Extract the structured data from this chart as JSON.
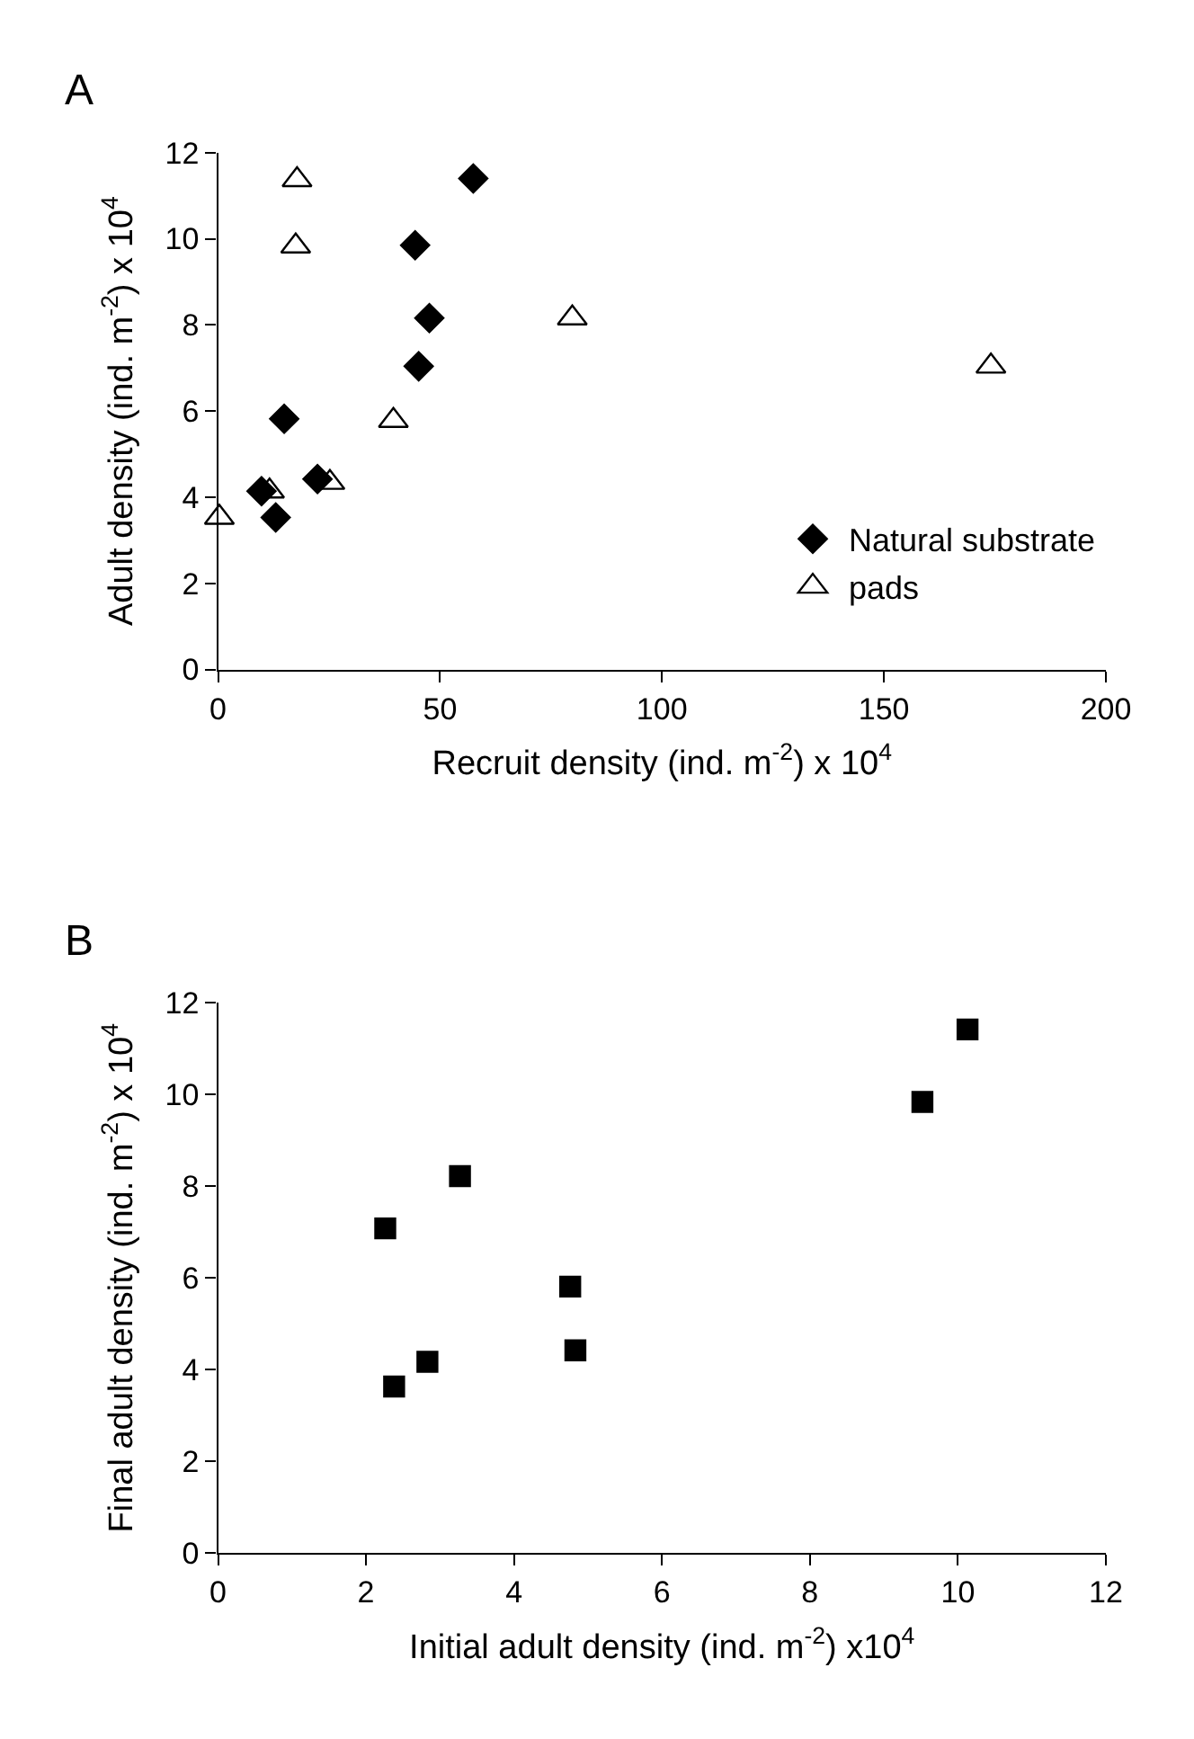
{
  "chart_data": [
    {
      "type": "scatter",
      "title": "A",
      "xlabel": "Recruit density (ind. m$^{-2}$) x 10$^{4}$",
      "ylabel": "Adult density (ind. m$^{-2}$) x 10$^{4}$",
      "xlim": [
        0,
        200
      ],
      "xticks": [
        0,
        50,
        100,
        150,
        200
      ],
      "ylim": [
        0,
        12
      ],
      "yticks": [
        0,
        2,
        4,
        6,
        8,
        10,
        12
      ],
      "legend": "bottom right",
      "series": [
        {
          "name": "Natural substrate",
          "color": "#000000",
          "marker": "diamond",
          "x": [
            57.5,
            44.4,
            47.6,
            45.2,
            14.9,
            9.8,
            13.0,
            22.4
          ],
          "values": [
            11.4,
            9.85,
            8.16,
            7.04,
            5.82,
            4.14,
            3.53,
            4.42
          ]
        },
        {
          "name": "pads",
          "color": "#000000",
          "marker": "triangle",
          "x": [
            17.8,
            17.5,
            79.8,
            174.1,
            39.5,
            11.6,
            25.2,
            0.3
          ],
          "values": [
            11.37,
            9.83,
            8.16,
            7.04,
            5.78,
            4.14,
            4.34,
            3.53
          ]
        }
      ]
    },
    {
      "type": "scatter",
      "title": "B",
      "xlabel": "Initial adult density (ind. m$^{-2}$) x10$^{4}$",
      "ylabel": "Final adult density (ind. m$^{-2}$) x 10$^{4}$",
      "xlim": [
        0,
        12
      ],
      "xticks": [
        0,
        2,
        4,
        6,
        8,
        10,
        12
      ],
      "ylim": [
        0,
        12
      ],
      "yticks": [
        0,
        2,
        4,
        6,
        8,
        10,
        12
      ],
      "legend": false,
      "series": [
        {
          "color": "#000000",
          "marker": "square",
          "x": [
            2.26,
            3.27,
            2.38,
            2.83,
            4.76,
            4.83,
            9.52,
            10.13
          ],
          "values": [
            7.08,
            8.22,
            3.63,
            4.17,
            5.81,
            4.42,
            9.84,
            11.42
          ]
        }
      ]
    }
  ]
}
